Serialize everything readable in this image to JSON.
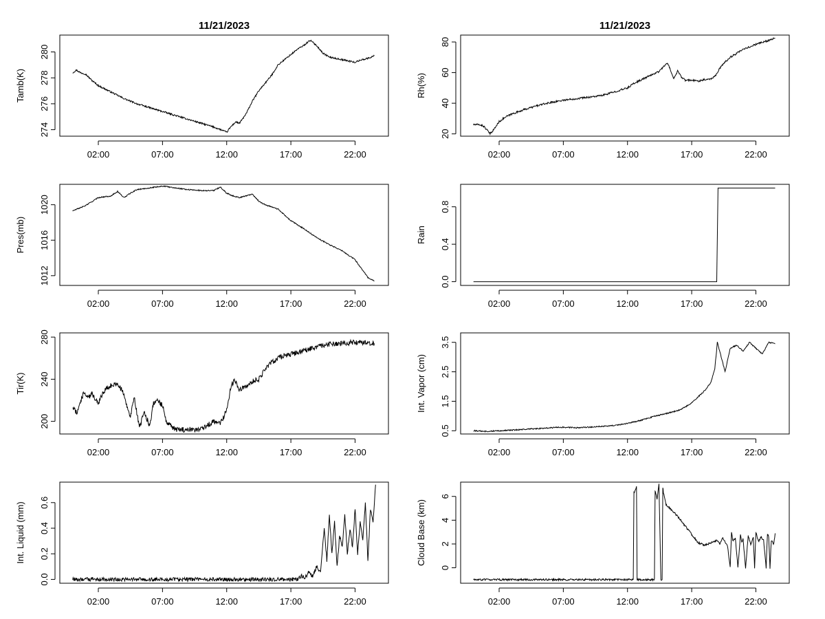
{
  "chart_data": [
    {
      "type": "line",
      "title": "11/21/2023",
      "ylabel": "Tamb(K)",
      "xlabel": "",
      "xlim": [
        -1.0,
        24.6
      ],
      "ylim": [
        273.5,
        281.3
      ],
      "x_ticks": [
        2,
        7,
        12,
        17,
        22
      ],
      "x_tick_labels": [
        "02:00",
        "07:00",
        "12:00",
        "17:00",
        "22:00"
      ],
      "y_ticks": [
        274,
        276,
        278,
        280
      ],
      "y_tick_labels": [
        "274",
        "276",
        "278",
        "280"
      ],
      "series": [
        {
          "name": "Tamb(K)",
          "noise": 0.06,
          "x": [
            0,
            0.3,
            0.6,
            1,
            1.5,
            2,
            3,
            4,
            5,
            6,
            7,
            8,
            9,
            10,
            11,
            11.8,
            12,
            12.3,
            12.7,
            13,
            13.5,
            14,
            14.5,
            15,
            15.5,
            16,
            16.5,
            17,
            17.5,
            18,
            18.5,
            19,
            19.5,
            20,
            20.5,
            21,
            21.5,
            22,
            22.5,
            23,
            23.5
          ],
          "y": [
            278.4,
            278.6,
            278.4,
            278.3,
            277.8,
            277.4,
            276.9,
            276.4,
            276.0,
            275.7,
            275.4,
            275.1,
            274.8,
            274.5,
            274.2,
            273.9,
            273.8,
            274.2,
            274.6,
            274.5,
            275.2,
            276.2,
            277.0,
            277.6,
            278.2,
            279.0,
            279.4,
            279.8,
            280.2,
            280.5,
            280.9,
            280.5,
            279.9,
            279.6,
            279.5,
            279.4,
            279.3,
            279.2,
            279.4,
            279.5,
            279.7
          ]
        }
      ]
    },
    {
      "type": "line",
      "title": "11/21/2023",
      "ylabel": "Rh(%)",
      "xlabel": "",
      "xlim": [
        -1.0,
        24.6
      ],
      "ylim": [
        18.5,
        84.5
      ],
      "x_ticks": [
        2,
        7,
        12,
        17,
        22
      ],
      "x_tick_labels": [
        "02:00",
        "07:00",
        "12:00",
        "17:00",
        "22:00"
      ],
      "y_ticks": [
        20,
        40,
        60,
        80
      ],
      "y_tick_labels": [
        "20",
        "40",
        "60",
        "80"
      ],
      "series": [
        {
          "name": "Rh(%)",
          "noise": 0.6,
          "x": [
            0,
            0.5,
            0.8,
            1.1,
            1.3,
            1.6,
            2,
            2.5,
            3,
            4,
            5,
            6,
            7,
            8,
            9,
            10,
            11,
            12,
            12.5,
            13,
            13.5,
            14,
            14.5,
            14.8,
            15.1,
            15.3,
            15.6,
            15.9,
            16.2,
            16.5,
            17,
            17.5,
            18,
            18.5,
            18.8,
            19.2,
            19.5,
            20,
            21,
            22,
            23,
            23.5
          ],
          "y": [
            26,
            26,
            25,
            22,
            20,
            23,
            28,
            31,
            33,
            36,
            38.5,
            40.5,
            42,
            43,
            44,
            45,
            47.5,
            50,
            53,
            55,
            57,
            59,
            61,
            64,
            66,
            63,
            56,
            61,
            57,
            55,
            55,
            54.5,
            55.5,
            56,
            57.5,
            63,
            66,
            70,
            75,
            78.5,
            81,
            82.5
          ]
        }
      ]
    },
    {
      "type": "line",
      "title": "",
      "ylabel": "Pres(mb)",
      "xlabel": "",
      "xlim": [
        -1.0,
        24.6
      ],
      "ylim": [
        1010.9,
        1022.3
      ],
      "x_ticks": [
        2,
        7,
        12,
        17,
        22
      ],
      "x_tick_labels": [
        "02:00",
        "07:00",
        "12:00",
        "17:00",
        "22:00"
      ],
      "y_ticks": [
        1012,
        1016,
        1020
      ],
      "y_tick_labels": [
        "1012",
        "1016",
        "1020"
      ],
      "series": [
        {
          "name": "Pres(mb)",
          "noise": 0.06,
          "x": [
            0,
            1,
            2,
            3,
            3.5,
            4,
            4.5,
            5,
            6,
            7,
            7.5,
            8,
            9,
            10,
            11,
            11.5,
            12,
            12.5,
            13,
            14,
            14.5,
            15,
            16,
            17,
            18,
            19,
            20,
            21,
            22,
            22.5,
            23,
            23.5
          ],
          "y": [
            1019.3,
            1019.9,
            1020.8,
            1021.0,
            1021.5,
            1020.8,
            1021.3,
            1021.7,
            1021.9,
            1022.1,
            1022.0,
            1021.9,
            1021.7,
            1021.6,
            1021.6,
            1022.0,
            1021.3,
            1021.0,
            1020.8,
            1021.2,
            1020.4,
            1020.0,
            1019.5,
            1018.2,
            1017.3,
            1016.3,
            1015.5,
            1014.8,
            1013.8,
            1012.8,
            1011.8,
            1011.4
          ]
        }
      ]
    },
    {
      "type": "line",
      "title": "",
      "ylabel": "Rain",
      "xlabel": "",
      "xlim": [
        -1.0,
        24.6
      ],
      "ylim": [
        -0.04,
        1.04
      ],
      "x_ticks": [
        2,
        7,
        12,
        17,
        22
      ],
      "x_tick_labels": [
        "02:00",
        "07:00",
        "12:00",
        "17:00",
        "22:00"
      ],
      "y_ticks": [
        0.0,
        0.4,
        0.8
      ],
      "y_tick_labels": [
        "0.0",
        "0.4",
        "0.8"
      ],
      "series": [
        {
          "name": "Rain",
          "noise": 0,
          "x": [
            0,
            18.95,
            19.05,
            23.5
          ],
          "y": [
            0,
            0,
            1,
            1
          ]
        }
      ]
    },
    {
      "type": "line",
      "title": "",
      "ylabel": "Tir(K)",
      "xlabel": "",
      "xlim": [
        -1.0,
        24.6
      ],
      "ylim": [
        188,
        284
      ],
      "x_ticks": [
        2,
        7,
        12,
        17,
        22
      ],
      "x_tick_labels": [
        "02:00",
        "07:00",
        "12:00",
        "17:00",
        "22:00"
      ],
      "y_ticks": [
        200,
        240,
        280
      ],
      "y_tick_labels": [
        "200",
        "240",
        "280"
      ],
      "series": [
        {
          "name": "Tir(K)",
          "noise": 2.5,
          "x": [
            0,
            0.3,
            0.6,
            0.9,
            1.2,
            1.5,
            2,
            2.5,
            3,
            3.5,
            3.9,
            4.2,
            4.5,
            4.8,
            5.2,
            5.6,
            6,
            6.3,
            6.6,
            7,
            7.3,
            7.6,
            8,
            8.5,
            9,
            10,
            10.5,
            11,
            11.5,
            12,
            12.3,
            12.6,
            13,
            13.5,
            14,
            14.5,
            15,
            15.5,
            16,
            16.5,
            17,
            17.5,
            18,
            19,
            20,
            21,
            22,
            23,
            23.5
          ],
          "y": [
            214,
            208,
            218,
            228,
            222,
            226,
            218,
            230,
            234,
            236,
            228,
            216,
            205,
            222,
            195,
            208,
            196,
            218,
            220,
            215,
            200,
            196,
            192,
            192,
            192,
            193,
            196,
            200,
            198,
            210,
            232,
            240,
            230,
            233,
            238,
            240,
            250,
            256,
            260,
            262,
            264,
            265,
            267,
            271,
            273,
            274,
            275,
            275,
            274
          ]
        }
      ]
    },
    {
      "type": "line",
      "title": "",
      "ylabel": "Int. Vapor (cm)",
      "xlabel": "",
      "xlim": [
        -1.0,
        24.6
      ],
      "ylim": [
        0.39,
        3.82
      ],
      "x_ticks": [
        2,
        7,
        12,
        17,
        22
      ],
      "x_tick_labels": [
        "02:00",
        "07:00",
        "12:00",
        "17:00",
        "22:00"
      ],
      "y_ticks": [
        0.5,
        1.5,
        2.5,
        3.5
      ],
      "y_tick_labels": [
        "0.5",
        "1.5",
        "2.5",
        "3.5"
      ],
      "series": [
        {
          "name": "Int. Vapor (cm)",
          "noise": 0.02,
          "x": [
            0,
            1,
            2,
            3,
            4,
            5,
            6,
            7,
            8,
            9,
            10,
            11,
            12,
            13,
            14,
            15,
            16,
            16.5,
            17,
            17.5,
            18,
            18.5,
            18.8,
            19,
            19.3,
            19.6,
            20,
            20.5,
            21,
            21.5,
            22,
            22.5,
            23,
            23.5
          ],
          "y": [
            0.5,
            0.48,
            0.5,
            0.52,
            0.55,
            0.57,
            0.6,
            0.62,
            0.6,
            0.62,
            0.65,
            0.68,
            0.75,
            0.85,
            0.98,
            1.08,
            1.2,
            1.3,
            1.45,
            1.65,
            1.85,
            2.15,
            2.6,
            3.5,
            3.0,
            2.5,
            3.3,
            3.4,
            3.2,
            3.5,
            3.3,
            3.1,
            3.5,
            3.45
          ]
        }
      ]
    },
    {
      "type": "line",
      "title": "",
      "ylabel": "Int. Liquid (mm)",
      "xlabel": "",
      "xlim": [
        -1.0,
        24.6
      ],
      "ylim": [
        -0.03,
        0.76
      ],
      "x_ticks": [
        2,
        7,
        12,
        17,
        22
      ],
      "x_tick_labels": [
        "02:00",
        "07:00",
        "12:00",
        "17:00",
        "22:00"
      ],
      "y_ticks": [
        0.0,
        0.2,
        0.4,
        0.6
      ],
      "y_tick_labels": [
        "0.0",
        "0.2",
        "0.4",
        "0.6"
      ],
      "series": [
        {
          "name": "Int. Liquid (mm)",
          "noise": 0.015,
          "x": [
            0,
            17.5,
            17.8,
            18.1,
            18.4,
            18.7,
            19.0,
            19.3,
            19.6,
            19.8,
            20.0,
            20.2,
            20.4,
            20.6,
            20.8,
            21.0,
            21.2,
            21.4,
            21.6,
            21.8,
            22.0,
            22.2,
            22.4,
            22.6,
            22.8,
            23.0,
            23.2,
            23.4,
            23.6
          ],
          "y": [
            0,
            0,
            0.03,
            0.01,
            0.06,
            0.02,
            0.1,
            0.05,
            0.4,
            0.15,
            0.5,
            0.2,
            0.45,
            0.1,
            0.35,
            0.25,
            0.5,
            0.2,
            0.4,
            0.25,
            0.55,
            0.2,
            0.45,
            0.3,
            0.6,
            0.15,
            0.55,
            0.45,
            0.74
          ]
        }
      ]
    },
    {
      "type": "line",
      "title": "",
      "ylabel": "Cloud Base (km)",
      "xlabel": "",
      "xlim": [
        -1.0,
        24.6
      ],
      "ylim": [
        -1.3,
        7.2
      ],
      "x_ticks": [
        2,
        7,
        12,
        17,
        22
      ],
      "x_tick_labels": [
        "02:00",
        "07:00",
        "12:00",
        "17:00",
        "22:00"
      ],
      "y_ticks": [
        0,
        2,
        4,
        6
      ],
      "y_tick_labels": [
        "0",
        "2",
        "4",
        "6"
      ],
      "series": [
        {
          "name": "Cloud Base (km)",
          "noise": 0.08,
          "x": [
            0,
            12.45,
            12.5,
            12.7,
            12.75,
            14.1,
            14.15,
            14.3,
            14.45,
            14.6,
            14.7,
            14.75,
            14.8,
            15.0,
            15.5,
            16.0,
            16.5,
            17.0,
            17.5,
            18.0,
            18.5,
            19.0,
            19.2,
            19.4,
            19.6,
            19.8,
            20.0,
            20.1,
            20.2,
            20.4,
            20.6,
            20.8,
            20.9,
            21.0,
            21.2,
            21.4,
            21.6,
            21.8,
            21.9,
            22.0,
            22.2,
            22.4,
            22.6,
            22.8,
            22.9,
            23.0,
            23.1,
            23.2,
            23.4,
            23.5
          ],
          "y": [
            -1,
            -1,
            6.3,
            6.8,
            -1,
            -1,
            6.5,
            5.8,
            7.0,
            -1,
            -1,
            6.8,
            6.3,
            5.3,
            4.8,
            4.2,
            3.5,
            2.8,
            2.1,
            1.9,
            2.1,
            2.3,
            2.0,
            2.5,
            2.2,
            1.8,
            0.0,
            3.0,
            2.3,
            2.5,
            0.0,
            2.8,
            2.2,
            2.4,
            0.0,
            2.7,
            2.0,
            2.5,
            0.0,
            3.0,
            2.2,
            2.6,
            2.3,
            0.0,
            2.9,
            2.6,
            0.0,
            2.3,
            2.0,
            2.9
          ]
        }
      ]
    }
  ]
}
